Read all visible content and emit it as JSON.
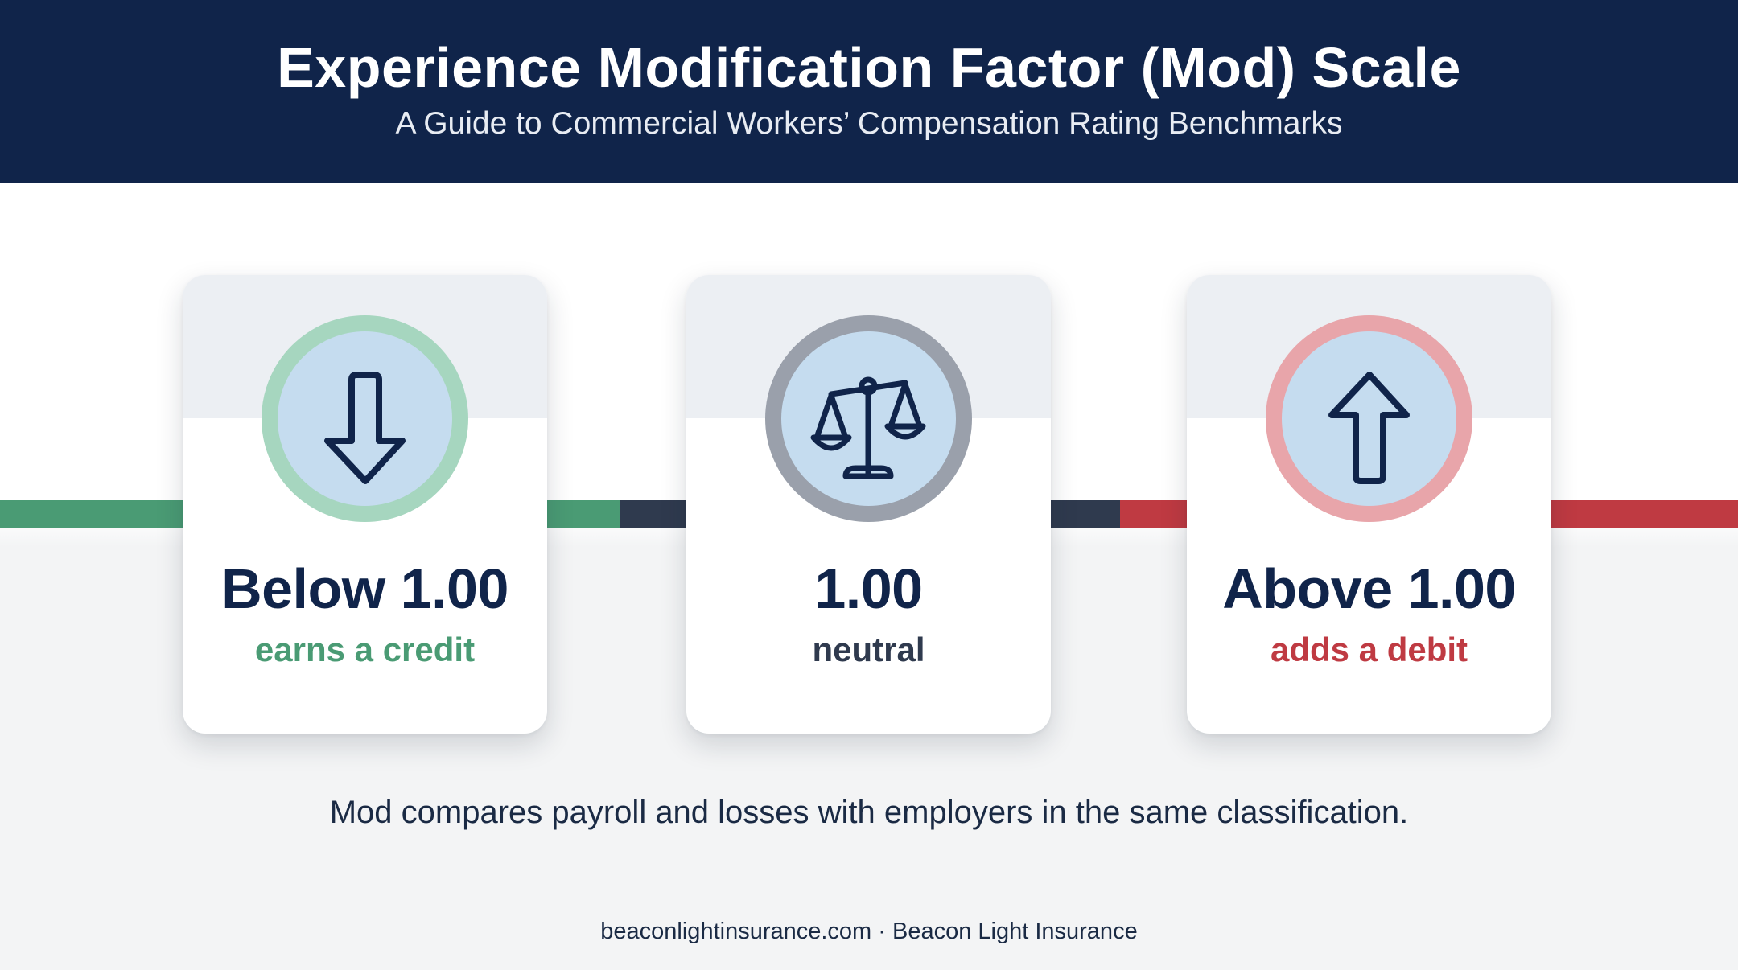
{
  "header": {
    "title": "Experience Modification Factor (Mod) Scale",
    "subtitle": "A Guide to Commercial Workers’ Compensation Rating Benchmarks"
  },
  "colors": {
    "header_bg": "#10244a",
    "credit": "#4a9b74",
    "neutral": "#2f3a4e",
    "debit": "#bf3a42"
  },
  "cards": [
    {
      "icon": "arrow-down-icon",
      "value": "Below 1.00",
      "label": "earns a credit",
      "tone": "credit"
    },
    {
      "icon": "balance-scale-icon",
      "value": "1.00",
      "label": "neutral",
      "tone": "neutral"
    },
    {
      "icon": "arrow-up-icon",
      "value": "Above 1.00",
      "label": "adds a debit",
      "tone": "debit"
    }
  ],
  "caption": "Mod compares payroll and losses with employers in the same classification.",
  "footer": "beaconlightinsurance.com · Beacon Light Insurance"
}
